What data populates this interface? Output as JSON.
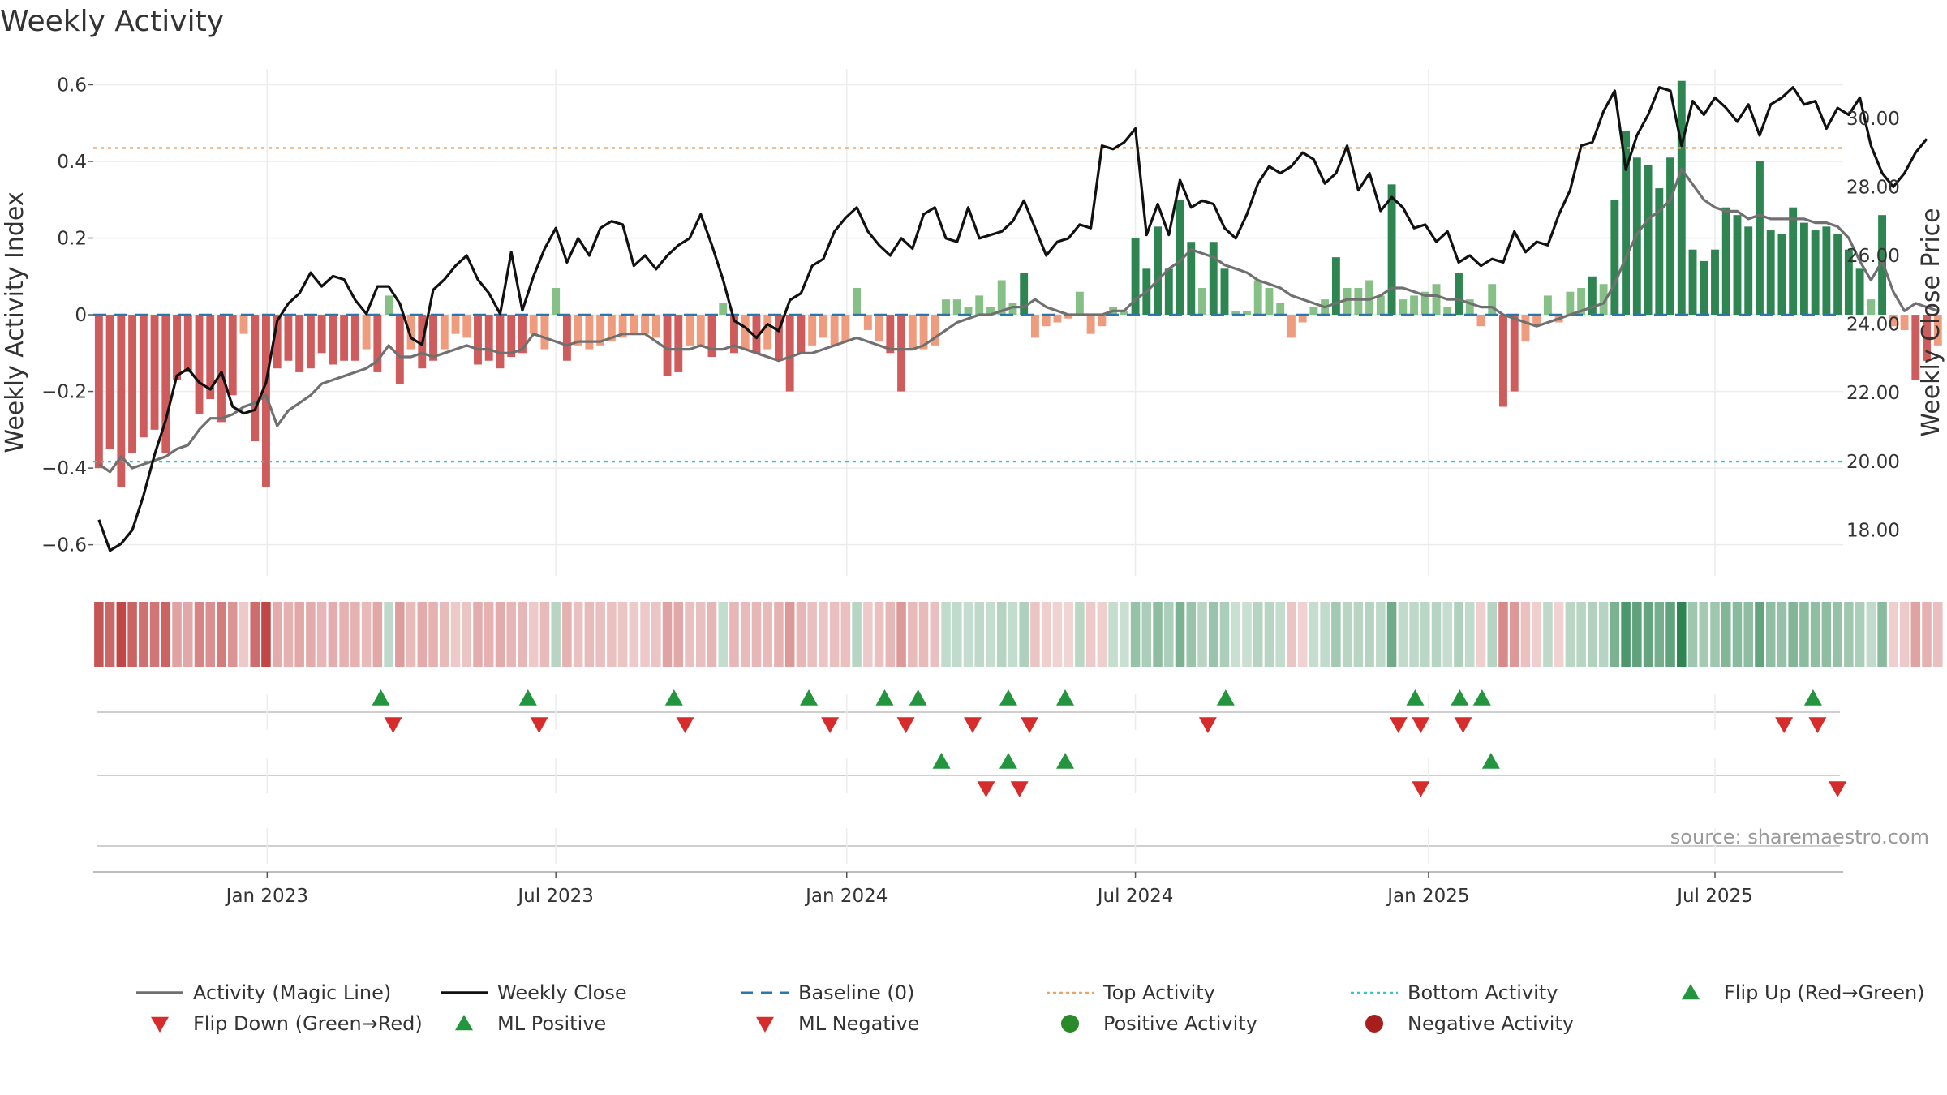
{
  "chart_data": {
    "type": "bar",
    "title": "Weekly Activity",
    "ylabel": "Weekly Activity Index",
    "y2label": "Weekly Close Price",
    "ylim": [
      -0.66,
      0.62
    ],
    "y2lim": [
      16.9,
      31.2
    ],
    "yticks": [
      -0.6,
      -0.4,
      -0.2,
      0,
      0.2,
      0.4,
      0.6
    ],
    "ytick_labels": [
      "−0.6",
      "−0.4",
      "−0.2",
      "0",
      "0.2",
      "0.4",
      "0.6"
    ],
    "y2ticks": [
      18,
      20,
      22,
      24,
      26,
      28,
      30
    ],
    "y2tick_labels": [
      "18.00",
      "20.00",
      "22.00",
      "24.00",
      "26.00",
      "28.00",
      "30.00"
    ],
    "xticks": [
      {
        "label": "Jan 2023",
        "week": 15.1
      },
      {
        "label": "Jul 2023",
        "week": 41
      },
      {
        "label": "Jan 2024",
        "week": 67.1
      },
      {
        "label": "Jul 2024",
        "week": 93
      },
      {
        "label": "Jan 2025",
        "week": 119.3
      },
      {
        "label": "Jul 2025",
        "week": 145
      },
      {
        "label": "",
        "week": 171
      }
    ],
    "week_range": [
      -0.5,
      156.5
    ],
    "top_activity": 0.435,
    "bottom_activity": -0.383,
    "baseline": 0,
    "activity": [
      -0.4,
      -0.35,
      -0.45,
      -0.36,
      -0.32,
      -0.3,
      -0.36,
      -0.17,
      -0.15,
      -0.26,
      -0.22,
      -0.28,
      -0.21,
      -0.05,
      -0.33,
      -0.45,
      -0.14,
      -0.12,
      -0.15,
      -0.14,
      -0.1,
      -0.13,
      -0.12,
      -0.12,
      -0.09,
      -0.15,
      0.05,
      -0.18,
      -0.09,
      -0.14,
      -0.12,
      -0.09,
      -0.05,
      -0.06,
      -0.13,
      -0.12,
      -0.14,
      -0.11,
      -0.1,
      -0.05,
      -0.09,
      0.07,
      -0.12,
      -0.08,
      -0.09,
      -0.08,
      -0.07,
      -0.06,
      -0.05,
      -0.05,
      -0.06,
      -0.16,
      -0.15,
      -0.08,
      -0.08,
      -0.11,
      0.03,
      -0.1,
      -0.09,
      -0.1,
      -0.09,
      -0.12,
      -0.2,
      -0.1,
      -0.08,
      -0.06,
      -0.08,
      -0.07,
      0.07,
      -0.04,
      -0.07,
      -0.1,
      -0.2,
      -0.09,
      -0.09,
      -0.08,
      0.04,
      0.04,
      0.02,
      0.05,
      0.02,
      0.09,
      0.03,
      0.11,
      -0.06,
      -0.03,
      -0.02,
      -0.01,
      0.06,
      -0.05,
      -0.03,
      0.02,
      0.01,
      0.2,
      0.12,
      0.23,
      0.12,
      0.3,
      0.19,
      0.07,
      0.19,
      0.12,
      0.01,
      0.01,
      0.09,
      0.07,
      0.03,
      -0.06,
      -0.02,
      0.02,
      0.04,
      0.15,
      0.07,
      0.07,
      0.09,
      0.05,
      0.34,
      0.04,
      0.05,
      0.06,
      0.08,
      0.02,
      0.11,
      0.04,
      -0.03,
      0.08,
      -0.24,
      -0.2,
      -0.07,
      -0.03,
      0.05,
      -0.02,
      0.06,
      0.07,
      0.1,
      0.08,
      0.3,
      0.48,
      0.41,
      0.39,
      0.33,
      0.41,
      0.61,
      0.17,
      0.14,
      0.17,
      0.28,
      0.26,
      0.23,
      0.4,
      0.22,
      0.21,
      0.28,
      0.24,
      0.22,
      0.23,
      0.21,
      0.17,
      0.12,
      0.04,
      0.26,
      -0.03,
      -0.04,
      -0.17,
      -0.12,
      -0.08
    ],
    "magic_line": [
      -0.39,
      -0.41,
      -0.37,
      -0.4,
      -0.39,
      -0.38,
      -0.37,
      -0.35,
      -0.34,
      -0.3,
      -0.27,
      -0.27,
      -0.26,
      -0.24,
      -0.23,
      -0.21,
      -0.29,
      -0.25,
      -0.23,
      -0.21,
      -0.18,
      -0.17,
      -0.16,
      -0.15,
      -0.14,
      -0.12,
      -0.08,
      -0.11,
      -0.11,
      -0.1,
      -0.11,
      -0.1,
      -0.09,
      -0.08,
      -0.09,
      -0.09,
      -0.1,
      -0.1,
      -0.09,
      -0.05,
      -0.06,
      -0.07,
      -0.08,
      -0.07,
      -0.07,
      -0.07,
      -0.06,
      -0.05,
      -0.05,
      -0.05,
      -0.07,
      -0.09,
      -0.09,
      -0.09,
      -0.08,
      -0.09,
      -0.09,
      -0.08,
      -0.09,
      -0.1,
      -0.11,
      -0.12,
      -0.11,
      -0.1,
      -0.1,
      -0.09,
      -0.08,
      -0.07,
      -0.06,
      -0.07,
      -0.08,
      -0.09,
      -0.09,
      -0.09,
      -0.08,
      -0.06,
      -0.04,
      -0.02,
      -0.01,
      0.0,
      0.0,
      0.01,
      0.02,
      0.02,
      0.04,
      0.02,
      0.01,
      0.0,
      0.0,
      0.0,
      0.0,
      0.01,
      0.01,
      0.04,
      0.06,
      0.09,
      0.12,
      0.14,
      0.17,
      0.16,
      0.15,
      0.13,
      0.12,
      0.11,
      0.09,
      0.08,
      0.07,
      0.05,
      0.04,
      0.03,
      0.02,
      0.03,
      0.04,
      0.04,
      0.04,
      0.05,
      0.07,
      0.07,
      0.06,
      0.05,
      0.05,
      0.04,
      0.04,
      0.03,
      0.02,
      0.02,
      0.0,
      -0.01,
      -0.02,
      -0.03,
      -0.02,
      -0.01,
      0.0,
      0.01,
      0.02,
      0.03,
      0.08,
      0.15,
      0.21,
      0.25,
      0.27,
      0.3,
      0.38,
      0.34,
      0.3,
      0.28,
      0.27,
      0.27,
      0.25,
      0.26,
      0.25,
      0.25,
      0.25,
      0.25,
      0.24,
      0.24,
      0.23,
      0.2,
      0.14,
      0.09,
      0.14,
      0.06,
      0.01,
      0.03,
      0.02,
      0.01
    ],
    "weekly_close": [
      18.3,
      17.4,
      17.6,
      18.0,
      19.0,
      20.2,
      21.2,
      22.5,
      22.7,
      22.3,
      22.1,
      22.6,
      21.6,
      21.4,
      21.5,
      22.3,
      24.1,
      24.6,
      24.9,
      25.5,
      25.1,
      25.4,
      25.3,
      24.7,
      24.3,
      25.1,
      25.1,
      24.6,
      23.6,
      23.4,
      25.0,
      25.3,
      25.7,
      26.0,
      25.3,
      24.9,
      24.3,
      26.1,
      24.4,
      25.4,
      26.2,
      26.8,
      25.8,
      26.5,
      26.0,
      26.8,
      27.0,
      26.9,
      25.7,
      26.0,
      25.6,
      26.0,
      26.3,
      26.5,
      27.2,
      26.3,
      25.3,
      24.1,
      23.9,
      23.6,
      24.0,
      23.8,
      24.7,
      24.9,
      25.7,
      25.9,
      26.7,
      27.1,
      27.4,
      26.7,
      26.3,
      26.0,
      26.5,
      26.2,
      27.2,
      27.4,
      26.5,
      26.4,
      27.4,
      26.5,
      26.6,
      26.7,
      27.0,
      27.6,
      26.8,
      26.0,
      26.4,
      26.5,
      26.9,
      26.8,
      29.2,
      29.1,
      29.3,
      29.7,
      26.6,
      27.5,
      26.6,
      28.2,
      27.4,
      27.6,
      27.5,
      26.8,
      26.5,
      27.2,
      28.1,
      28.6,
      28.4,
      28.6,
      29.0,
      28.8,
      28.1,
      28.4,
      29.2,
      27.9,
      28.4,
      27.3,
      27.7,
      27.4,
      26.8,
      26.9,
      26.4,
      26.7,
      25.8,
      26.0,
      25.7,
      25.9,
      25.8,
      26.7,
      26.1,
      26.4,
      26.3,
      27.2,
      27.9,
      29.2,
      29.3,
      30.2,
      30.8,
      28.5,
      29.5,
      30.1,
      30.9,
      30.8,
      29.2,
      30.5,
      30.1,
      30.6,
      30.3,
      29.9,
      30.4,
      29.5,
      30.4,
      30.6,
      30.9,
      30.4,
      30.5,
      29.7,
      30.3,
      30.1,
      30.6,
      29.2,
      28.4,
      28.0,
      28.4,
      29.0,
      29.4
    ],
    "strip": {
      "flip_up_weeks": [
        25.3,
        38.5,
        51.6,
        63.7,
        70.5,
        73.5,
        81.6,
        86.7,
        101.1,
        118.1,
        122.1,
        124.1,
        153.8
      ],
      "flip_down_weeks": [
        26.4,
        39.5,
        52.6,
        65.6,
        72.4,
        78.4,
        83.5,
        99.5,
        116.6,
        118.6,
        122.4,
        151.2,
        154.2
      ],
      "ml_positive_weeks": [
        75.6,
        81.6,
        86.7,
        124.9
      ],
      "ml_negative_weeks": [
        79.6,
        82.6,
        118.6,
        156.0
      ]
    },
    "legend": [
      {
        "label": "Activity (Magic Line)",
        "kind": "line",
        "color": "#707070"
      },
      {
        "label": "Weekly Close",
        "kind": "line",
        "color": "#111111"
      },
      {
        "label": "Baseline (0)",
        "kind": "dash",
        "color": "#2a76ae"
      },
      {
        "label": "Top Activity",
        "kind": "dot-orange",
        "color": "#f2a15f"
      },
      {
        "label": "Bottom Activity",
        "kind": "dot-cyan",
        "color": "#2fc9cc"
      },
      {
        "label": "Flip Up (Red→Green)",
        "kind": "tri-up",
        "color": "#23953e"
      },
      {
        "label": "Flip Down (Green→Red)",
        "kind": "tri-down",
        "color": "#d62c2c"
      },
      {
        "label": "ML Positive",
        "kind": "tri-up",
        "color": "#23953e"
      },
      {
        "label": "ML Negative",
        "kind": "tri-down",
        "color": "#d62c2c"
      },
      {
        "label": "Positive Activity",
        "kind": "circle",
        "color": "#2a8a2a"
      },
      {
        "label": "Negative Activity",
        "kind": "circle",
        "color": "#a81e1e"
      }
    ],
    "source": "source: sharemaestro.com",
    "colors": {
      "pos_strong": "#2e8552",
      "pos_light": "#86c087",
      "neg_strong": "#cf5c5c",
      "neg_light": "#ef9b7e"
    }
  }
}
